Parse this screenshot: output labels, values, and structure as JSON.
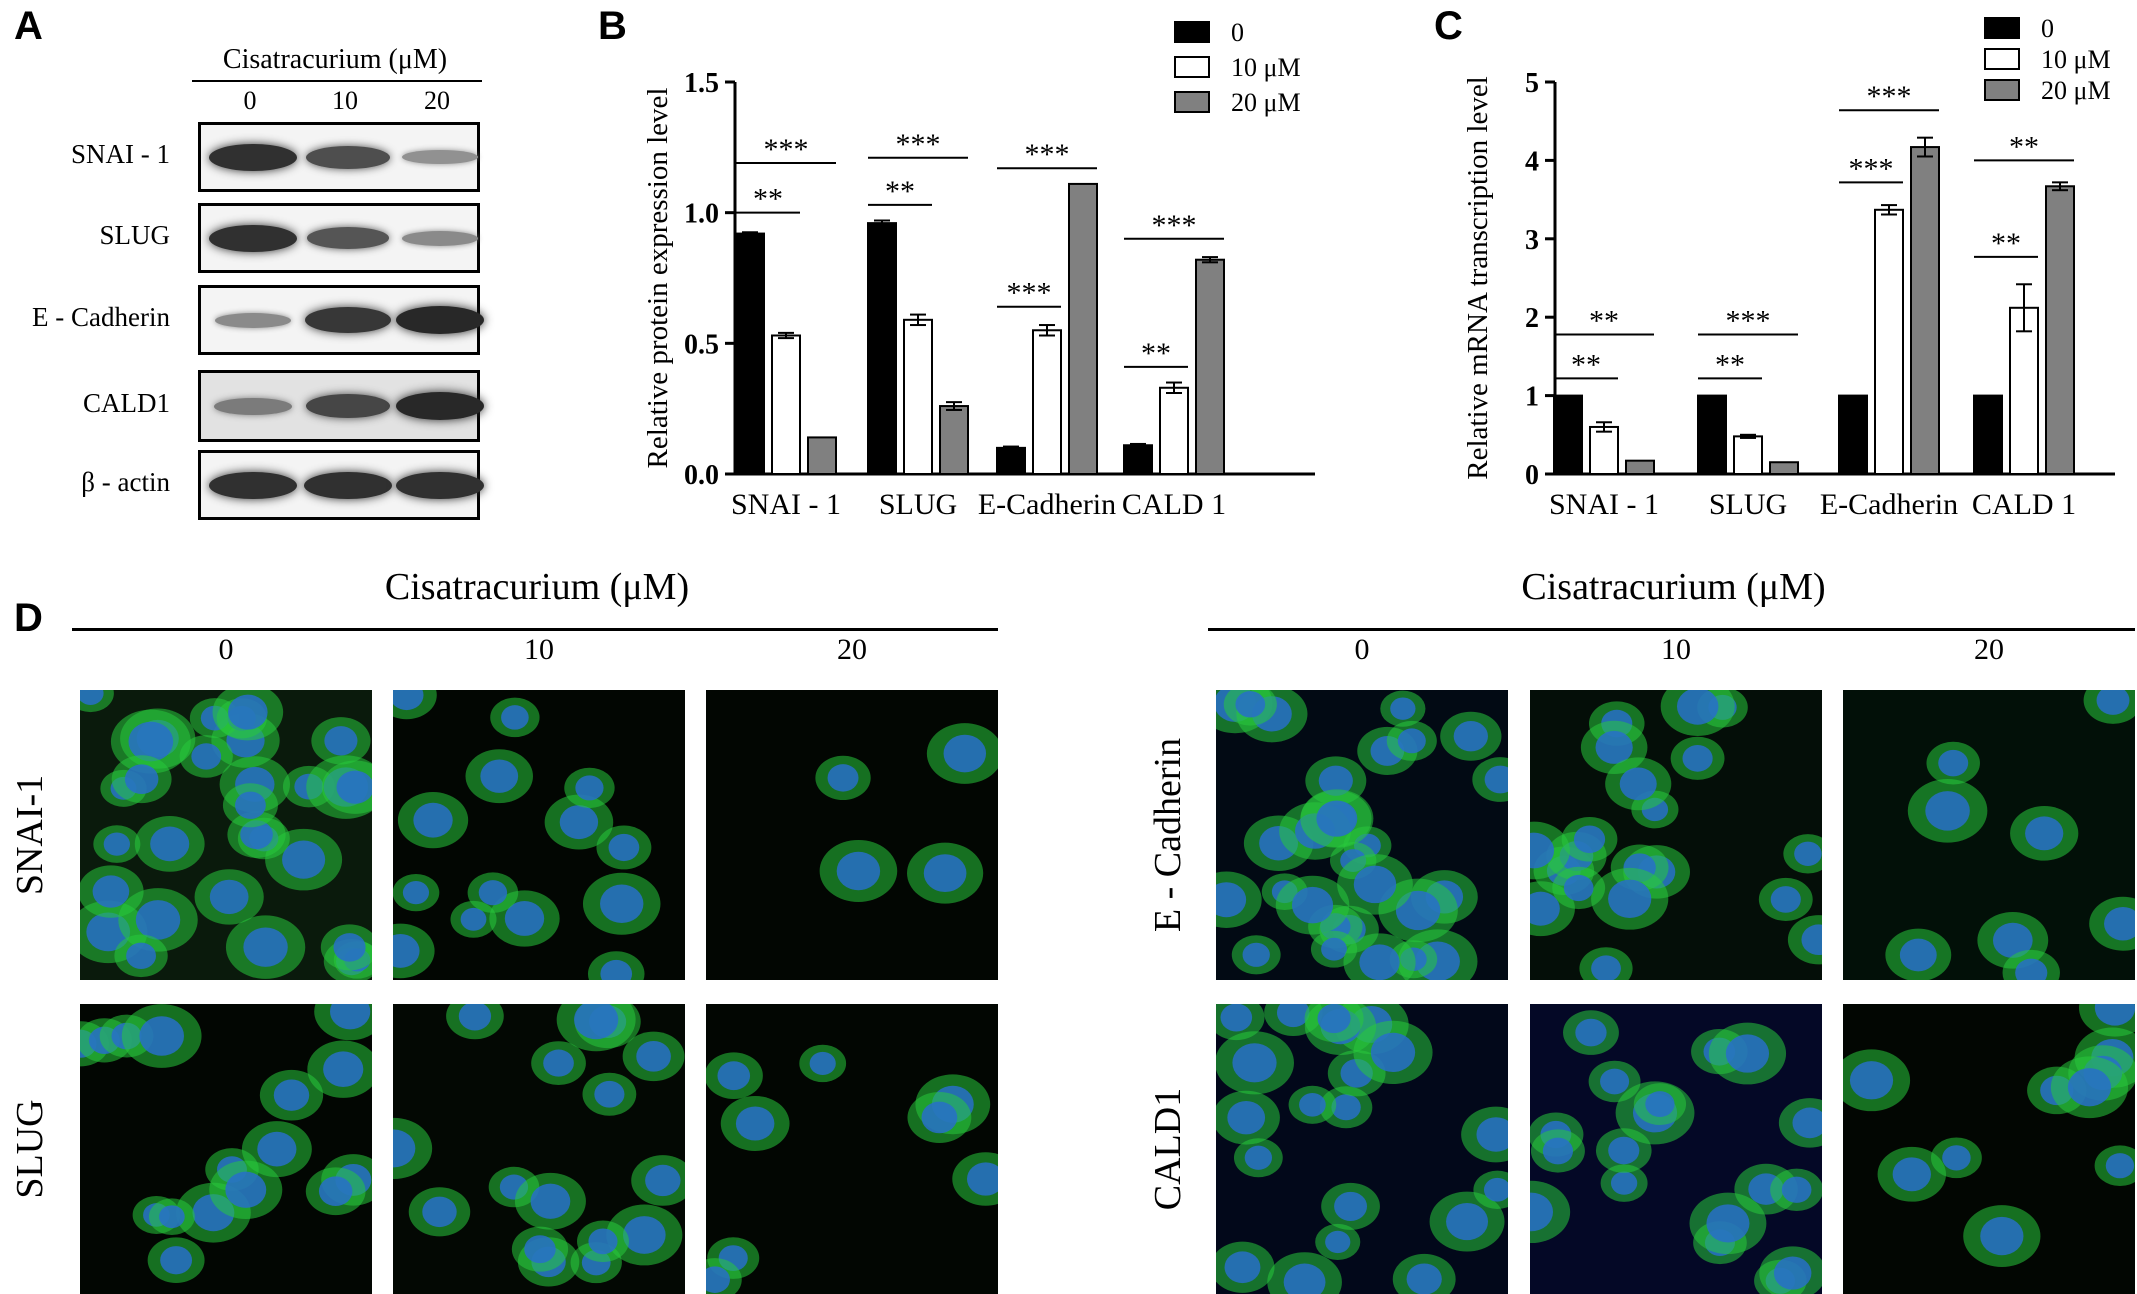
{
  "panels": {
    "a": {
      "letter": "A"
    },
    "b": {
      "letter": "B"
    },
    "c": {
      "letter": "C"
    },
    "d": {
      "letter": "D"
    }
  },
  "blot": {
    "title": "Cisatracurium (μM)",
    "lanes": [
      "0",
      "10",
      "20"
    ],
    "rows": [
      {
        "label": "SNAI - 1",
        "intensity": [
          0.95,
          0.75,
          0.3
        ]
      },
      {
        "label": "SLUG",
        "intensity": [
          0.95,
          0.7,
          0.35
        ]
      },
      {
        "label": "E - Cadherin",
        "intensity": [
          0.35,
          0.9,
          1.0
        ]
      },
      {
        "label": "CALD1",
        "intensity": [
          0.45,
          0.8,
          1.0
        ]
      },
      {
        "label": "β - actin",
        "intensity": [
          0.95,
          0.95,
          0.95
        ]
      }
    ]
  },
  "microscopy": {
    "groups": [
      {
        "title": "Cisatracurium (μM)",
        "lanes": [
          "0",
          "10",
          "20"
        ],
        "rows": [
          "SNAI-1",
          "SLUG"
        ]
      },
      {
        "title": "Cisatracurium (μM)",
        "lanes": [
          "0",
          "10",
          "20"
        ],
        "rows": [
          "E - Cadherin",
          "CALD1"
        ]
      }
    ]
  },
  "chart_data": [
    {
      "panel": "B",
      "type": "bar",
      "ylabel": "Relative protein expression level",
      "ylim": [
        0,
        1.5
      ],
      "yticks": [
        "0.0",
        "0.5",
        "1.0",
        "1.5"
      ],
      "categories": [
        "SNAI - 1",
        "SLUG",
        "E-Cadherin",
        "CALD 1"
      ],
      "series": [
        {
          "name": "0",
          "color": "#000000",
          "values": [
            0.92,
            0.96,
            0.1,
            0.11
          ],
          "errors": [
            0.005,
            0.01,
            0.005,
            0.005
          ]
        },
        {
          "name": "10 μM",
          "color": "#ffffff",
          "values": [
            0.53,
            0.59,
            0.55,
            0.33
          ],
          "errors": [
            0.01,
            0.02,
            0.02,
            0.02
          ]
        },
        {
          "name": "20 μM",
          "color": "#808080",
          "values": [
            0.14,
            0.26,
            1.11,
            0.82
          ],
          "errors": [
            0.0,
            0.015,
            0.0,
            0.01
          ]
        }
      ],
      "significance": [
        {
          "label": "**",
          "category": 0,
          "from": 0,
          "to": 1,
          "y": 1.0
        },
        {
          "label": "***",
          "category": 0,
          "from": 0,
          "to": 2,
          "y": 1.19
        },
        {
          "label": "**",
          "category": 1,
          "from": 0,
          "to": 1,
          "y": 1.03
        },
        {
          "label": "***",
          "category": 1,
          "from": 0,
          "to": 2,
          "y": 1.21
        },
        {
          "label": "***",
          "category": 2,
          "from": 0,
          "to": 1,
          "y": 0.64
        },
        {
          "label": "***",
          "category": 2,
          "from": 0,
          "to": 2,
          "y": 1.17
        },
        {
          "label": "**",
          "category": 3,
          "from": 0,
          "to": 1,
          "y": 0.41
        },
        {
          "label": "***",
          "category": 3,
          "from": 0,
          "to": 2,
          "y": 0.9
        }
      ],
      "legend": "top-right"
    },
    {
      "panel": "C",
      "type": "bar",
      "ylabel": "Relative mRNA transcription level",
      "ylim": [
        0,
        5
      ],
      "yticks": [
        "0",
        "1",
        "2",
        "3",
        "4",
        "5"
      ],
      "categories": [
        "SNAI - 1",
        "SLUG",
        "E-Cadherin",
        "CALD 1"
      ],
      "series": [
        {
          "name": "0",
          "color": "#000000",
          "values": [
            1.0,
            1.0,
            1.0,
            1.0
          ],
          "errors": [
            0,
            0,
            0,
            0
          ]
        },
        {
          "name": "10 μM",
          "color": "#ffffff",
          "values": [
            0.6,
            0.48,
            3.37,
            2.12
          ],
          "errors": [
            0.06,
            0.02,
            0.06,
            0.3
          ]
        },
        {
          "name": "20 μM",
          "color": "#808080",
          "values": [
            0.17,
            0.15,
            4.17,
            3.67
          ],
          "errors": [
            0.0,
            0.0,
            0.12,
            0.05
          ]
        }
      ],
      "significance": [
        {
          "label": "**",
          "category": 0,
          "from": 0,
          "to": 1,
          "y": 1.22
        },
        {
          "label": "**",
          "category": 0,
          "from": 0,
          "to": 2,
          "y": 1.78
        },
        {
          "label": "**",
          "category": 1,
          "from": 0,
          "to": 1,
          "y": 1.22
        },
        {
          "label": "***",
          "category": 1,
          "from": 0,
          "to": 2,
          "y": 1.78
        },
        {
          "label": "***",
          "category": 2,
          "from": 0,
          "to": 1,
          "y": 3.72
        },
        {
          "label": "***",
          "category": 2,
          "from": 0,
          "to": 2,
          "y": 4.64
        },
        {
          "label": "**",
          "category": 3,
          "from": 0,
          "to": 1,
          "y": 2.77
        },
        {
          "label": "**",
          "category": 3,
          "from": 0,
          "to": 2,
          "y": 4.0
        }
      ],
      "legend": "top-right"
    }
  ]
}
